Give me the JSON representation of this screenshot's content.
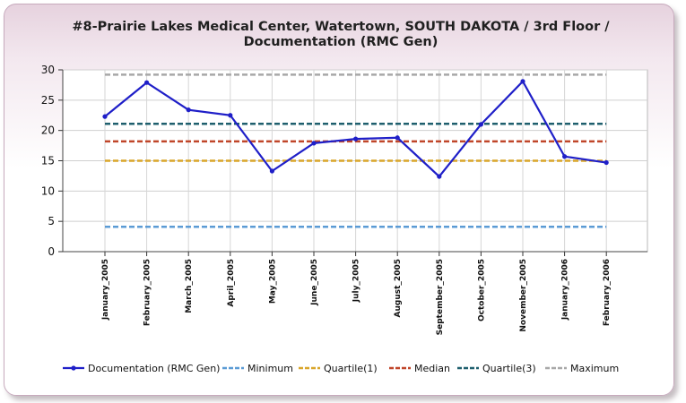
{
  "chart_data": {
    "type": "line",
    "title": "#8-Prairie Lakes Medical Center, Watertown, SOUTH DAKOTA   /   3rd Floor   /   Documentation (RMC Gen)",
    "xlabel": "",
    "ylabel": "",
    "ylim": [
      0,
      30
    ],
    "yticks": [
      0,
      5,
      10,
      15,
      20,
      25,
      30
    ],
    "grid": true,
    "legend_position": "bottom",
    "categories": [
      "January_2005",
      "February_2005",
      "March_2005",
      "April_2005",
      "May_2005",
      "June_2005",
      "July_2005",
      "August_2005",
      "September_2005",
      "October_2005",
      "November_2005",
      "January_2006",
      "February_2006"
    ],
    "series": [
      {
        "name": "Documentation (RMC Gen)",
        "style": "line-markers",
        "color": "#1f1fc8",
        "values": [
          22.3,
          27.9,
          23.4,
          22.5,
          13.3,
          17.9,
          18.6,
          18.8,
          12.4,
          21.0,
          28.1,
          15.7,
          14.7
        ]
      },
      {
        "name": "Minimum",
        "style": "dashed",
        "color": "#5b9bd5",
        "values": [
          4.1,
          4.1,
          4.1,
          4.1,
          4.1,
          4.1,
          4.1,
          4.1,
          4.1,
          4.1,
          4.1,
          4.1,
          4.1
        ]
      },
      {
        "name": "Quartile(1)",
        "style": "dashed",
        "color": "#d9a62a",
        "values": [
          15.0,
          15.0,
          15.0,
          15.0,
          15.0,
          15.0,
          15.0,
          15.0,
          15.0,
          15.0,
          15.0,
          15.0,
          15.0
        ]
      },
      {
        "name": "Median",
        "style": "dashed",
        "color": "#c0462a",
        "values": [
          18.2,
          18.2,
          18.2,
          18.2,
          18.2,
          18.2,
          18.2,
          18.2,
          18.2,
          18.2,
          18.2,
          18.2,
          18.2
        ]
      },
      {
        "name": "Quartile(3)",
        "style": "dashed",
        "color": "#1f5f6e",
        "values": [
          21.1,
          21.1,
          21.1,
          21.1,
          21.1,
          21.1,
          21.1,
          21.1,
          21.1,
          21.1,
          21.1,
          21.1,
          21.1
        ]
      },
      {
        "name": "Maximum",
        "style": "dashed",
        "color": "#a8a8a8",
        "values": [
          29.2,
          29.2,
          29.2,
          29.2,
          29.2,
          29.2,
          29.2,
          29.2,
          29.2,
          29.2,
          29.2,
          29.2,
          29.2
        ]
      }
    ]
  }
}
